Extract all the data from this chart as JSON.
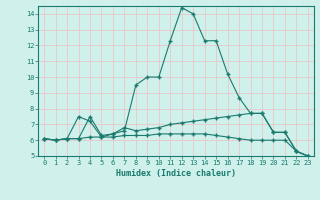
{
  "xlabel": "Humidex (Indice chaleur)",
  "background_color": "#cff0eb",
  "grid_color": "#e8c8c8",
  "line_color": "#1a7a6e",
  "xlim": [
    -0.5,
    23.5
  ],
  "ylim": [
    5,
    14.5
  ],
  "yticks": [
    5,
    6,
    7,
    8,
    9,
    10,
    11,
    12,
    13,
    14
  ],
  "xticks": [
    0,
    1,
    2,
    3,
    4,
    5,
    6,
    7,
    8,
    9,
    10,
    11,
    12,
    13,
    14,
    15,
    16,
    17,
    18,
    19,
    20,
    21,
    22,
    23
  ],
  "line1_x": [
    0,
    1,
    2,
    3,
    4,
    5,
    6,
    7,
    8,
    9,
    10,
    11,
    12,
    13,
    14,
    15,
    16,
    17,
    18,
    19,
    20,
    21,
    22,
    23
  ],
  "line1_y": [
    6.1,
    6.0,
    6.1,
    7.5,
    7.2,
    6.2,
    6.4,
    6.6,
    9.5,
    10.0,
    10.0,
    12.3,
    14.4,
    14.0,
    12.3,
    12.3,
    10.2,
    8.7,
    7.7,
    7.7,
    6.5,
    6.5,
    5.3,
    5.0
  ],
  "line2_x": [
    0,
    1,
    2,
    3,
    4,
    5,
    6,
    7,
    8,
    9,
    10,
    11,
    12,
    13,
    14,
    15,
    16,
    17,
    18,
    19,
    20,
    21,
    22,
    23
  ],
  "line2_y": [
    6.1,
    6.0,
    6.1,
    6.1,
    7.5,
    6.3,
    6.4,
    6.8,
    6.6,
    6.7,
    6.8,
    7.0,
    7.1,
    7.2,
    7.3,
    7.4,
    7.5,
    7.6,
    7.7,
    7.7,
    6.5,
    6.5,
    5.3,
    5.0
  ],
  "line3_x": [
    0,
    1,
    2,
    3,
    4,
    5,
    6,
    7,
    8,
    9,
    10,
    11,
    12,
    13,
    14,
    15,
    16,
    17,
    18,
    19,
    20,
    21,
    22,
    23
  ],
  "line3_y": [
    6.1,
    6.0,
    6.1,
    6.1,
    6.2,
    6.2,
    6.2,
    6.3,
    6.3,
    6.3,
    6.4,
    6.4,
    6.4,
    6.4,
    6.4,
    6.3,
    6.2,
    6.1,
    6.0,
    6.0,
    6.0,
    6.0,
    5.3,
    5.0
  ]
}
